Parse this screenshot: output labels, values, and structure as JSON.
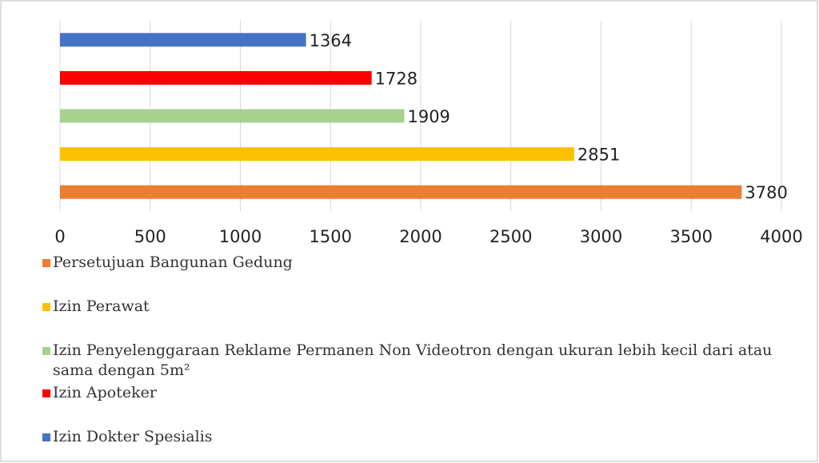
{
  "chart_data": {
    "type": "bar",
    "orientation": "horizontal",
    "series": [
      {
        "name": "Persetujuan Bangunan Gedung",
        "color": "#ed7d31",
        "values": [
          3780
        ]
      },
      {
        "name": "Izin Perawat",
        "color": "#ffc000",
        "values": [
          2851
        ]
      },
      {
        "name": "Izin Penyelenggaraan Reklame Permanen Non Videotron dengan ukuran lebih kecil dari atau sama dengan 5m²",
        "color": "#a9d18e",
        "values": [
          1909
        ]
      },
      {
        "name": "Izin Apoteker",
        "color": "#ff0000",
        "values": [
          1728
        ]
      },
      {
        "name": "Izin Dokter Spesialis",
        "color": "#4472c4",
        "values": [
          1364
        ]
      }
    ],
    "xlim": [
      0,
      4000
    ],
    "xticks": [
      0,
      500,
      1000,
      1500,
      2000,
      2500,
      3000,
      3500,
      4000
    ],
    "grid": true,
    "legend": "bottom"
  }
}
